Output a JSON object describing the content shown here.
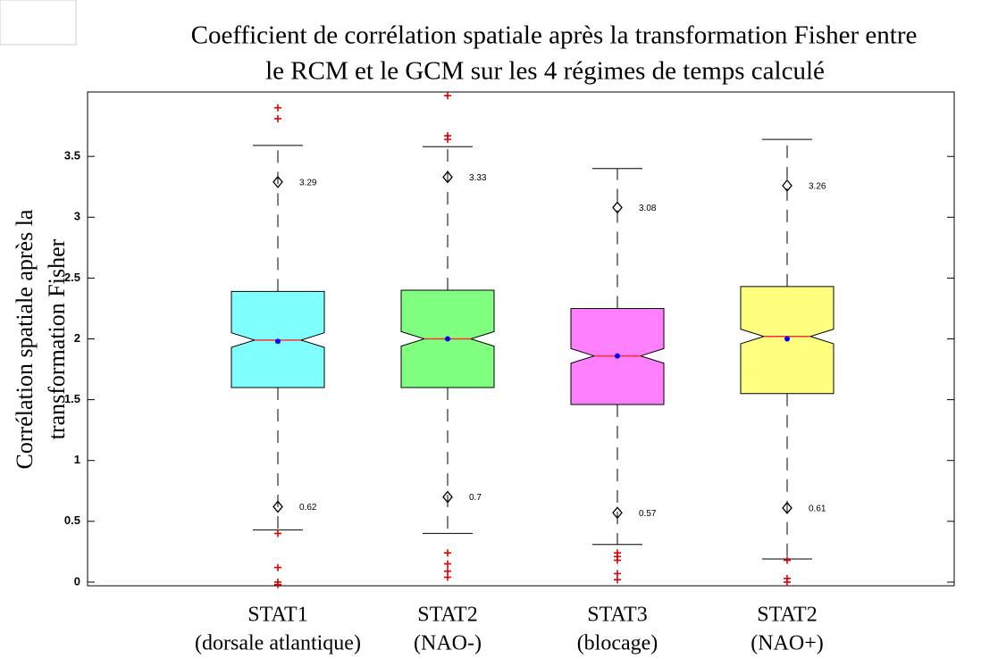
{
  "chart_data": {
    "type": "boxplot",
    "title": [
      "Coefficient de corrélation spatiale après la transformation Fisher entre",
      "le RCM et le GCM sur les 4 régimes de temps calculé"
    ],
    "y_label": [
      "Corrélation spatiale après la",
      "transformation Fisher"
    ],
    "categories": [
      [
        "STAT1",
        "(dorsale atlantique)"
      ],
      [
        "STAT2",
        "(NAO-)"
      ],
      [
        "STAT3",
        "(blocage)"
      ],
      [
        "STAT2",
        "(NAO+)"
      ]
    ],
    "ylim": [
      -0.03,
      4.03
    ],
    "yticks": [
      0,
      0.5,
      1,
      1.5,
      2,
      2.5,
      3,
      3.5
    ],
    "boxes": [
      {
        "color": "#80ffff",
        "q1": 1.6,
        "median": 1.99,
        "q3": 2.39,
        "notch": [
          1.93,
          2.05
        ],
        "whisker_low": 0.43,
        "whisker_high": 3.59,
        "mean": 1.98,
        "outliers": [
          3.9,
          3.81,
          0.4,
          0.12,
          0.0,
          -0.02
        ],
        "markers": [
          3.29,
          0.62
        ]
      },
      {
        "color": "#80ff80",
        "q1": 1.6,
        "median": 2.0,
        "q3": 2.4,
        "notch": [
          1.94,
          2.06
        ],
        "whisker_low": 0.4,
        "whisker_high": 3.58,
        "mean": 2.0,
        "outliers": [
          4.0,
          3.67,
          3.64,
          0.24,
          0.15,
          0.09,
          0.04
        ],
        "markers": [
          3.33,
          0.7
        ]
      },
      {
        "color": "#ff80ff",
        "q1": 1.46,
        "median": 1.86,
        "q3": 2.25,
        "notch": [
          1.8,
          1.92
        ],
        "whisker_low": 0.31,
        "whisker_high": 3.4,
        "mean": 1.86,
        "outliers": [
          0.24,
          0.21,
          0.18,
          0.07,
          0.02
        ],
        "markers": [
          3.08,
          0.57
        ]
      },
      {
        "color": "#ffff80",
        "q1": 1.55,
        "median": 2.02,
        "q3": 2.43,
        "notch": [
          1.96,
          2.08
        ],
        "whisker_low": 0.19,
        "whisker_high": 3.64,
        "mean": 2.0,
        "outliers": [
          0.18,
          0.03,
          0.0
        ],
        "markers": [
          3.26,
          0.61
        ]
      }
    ]
  }
}
